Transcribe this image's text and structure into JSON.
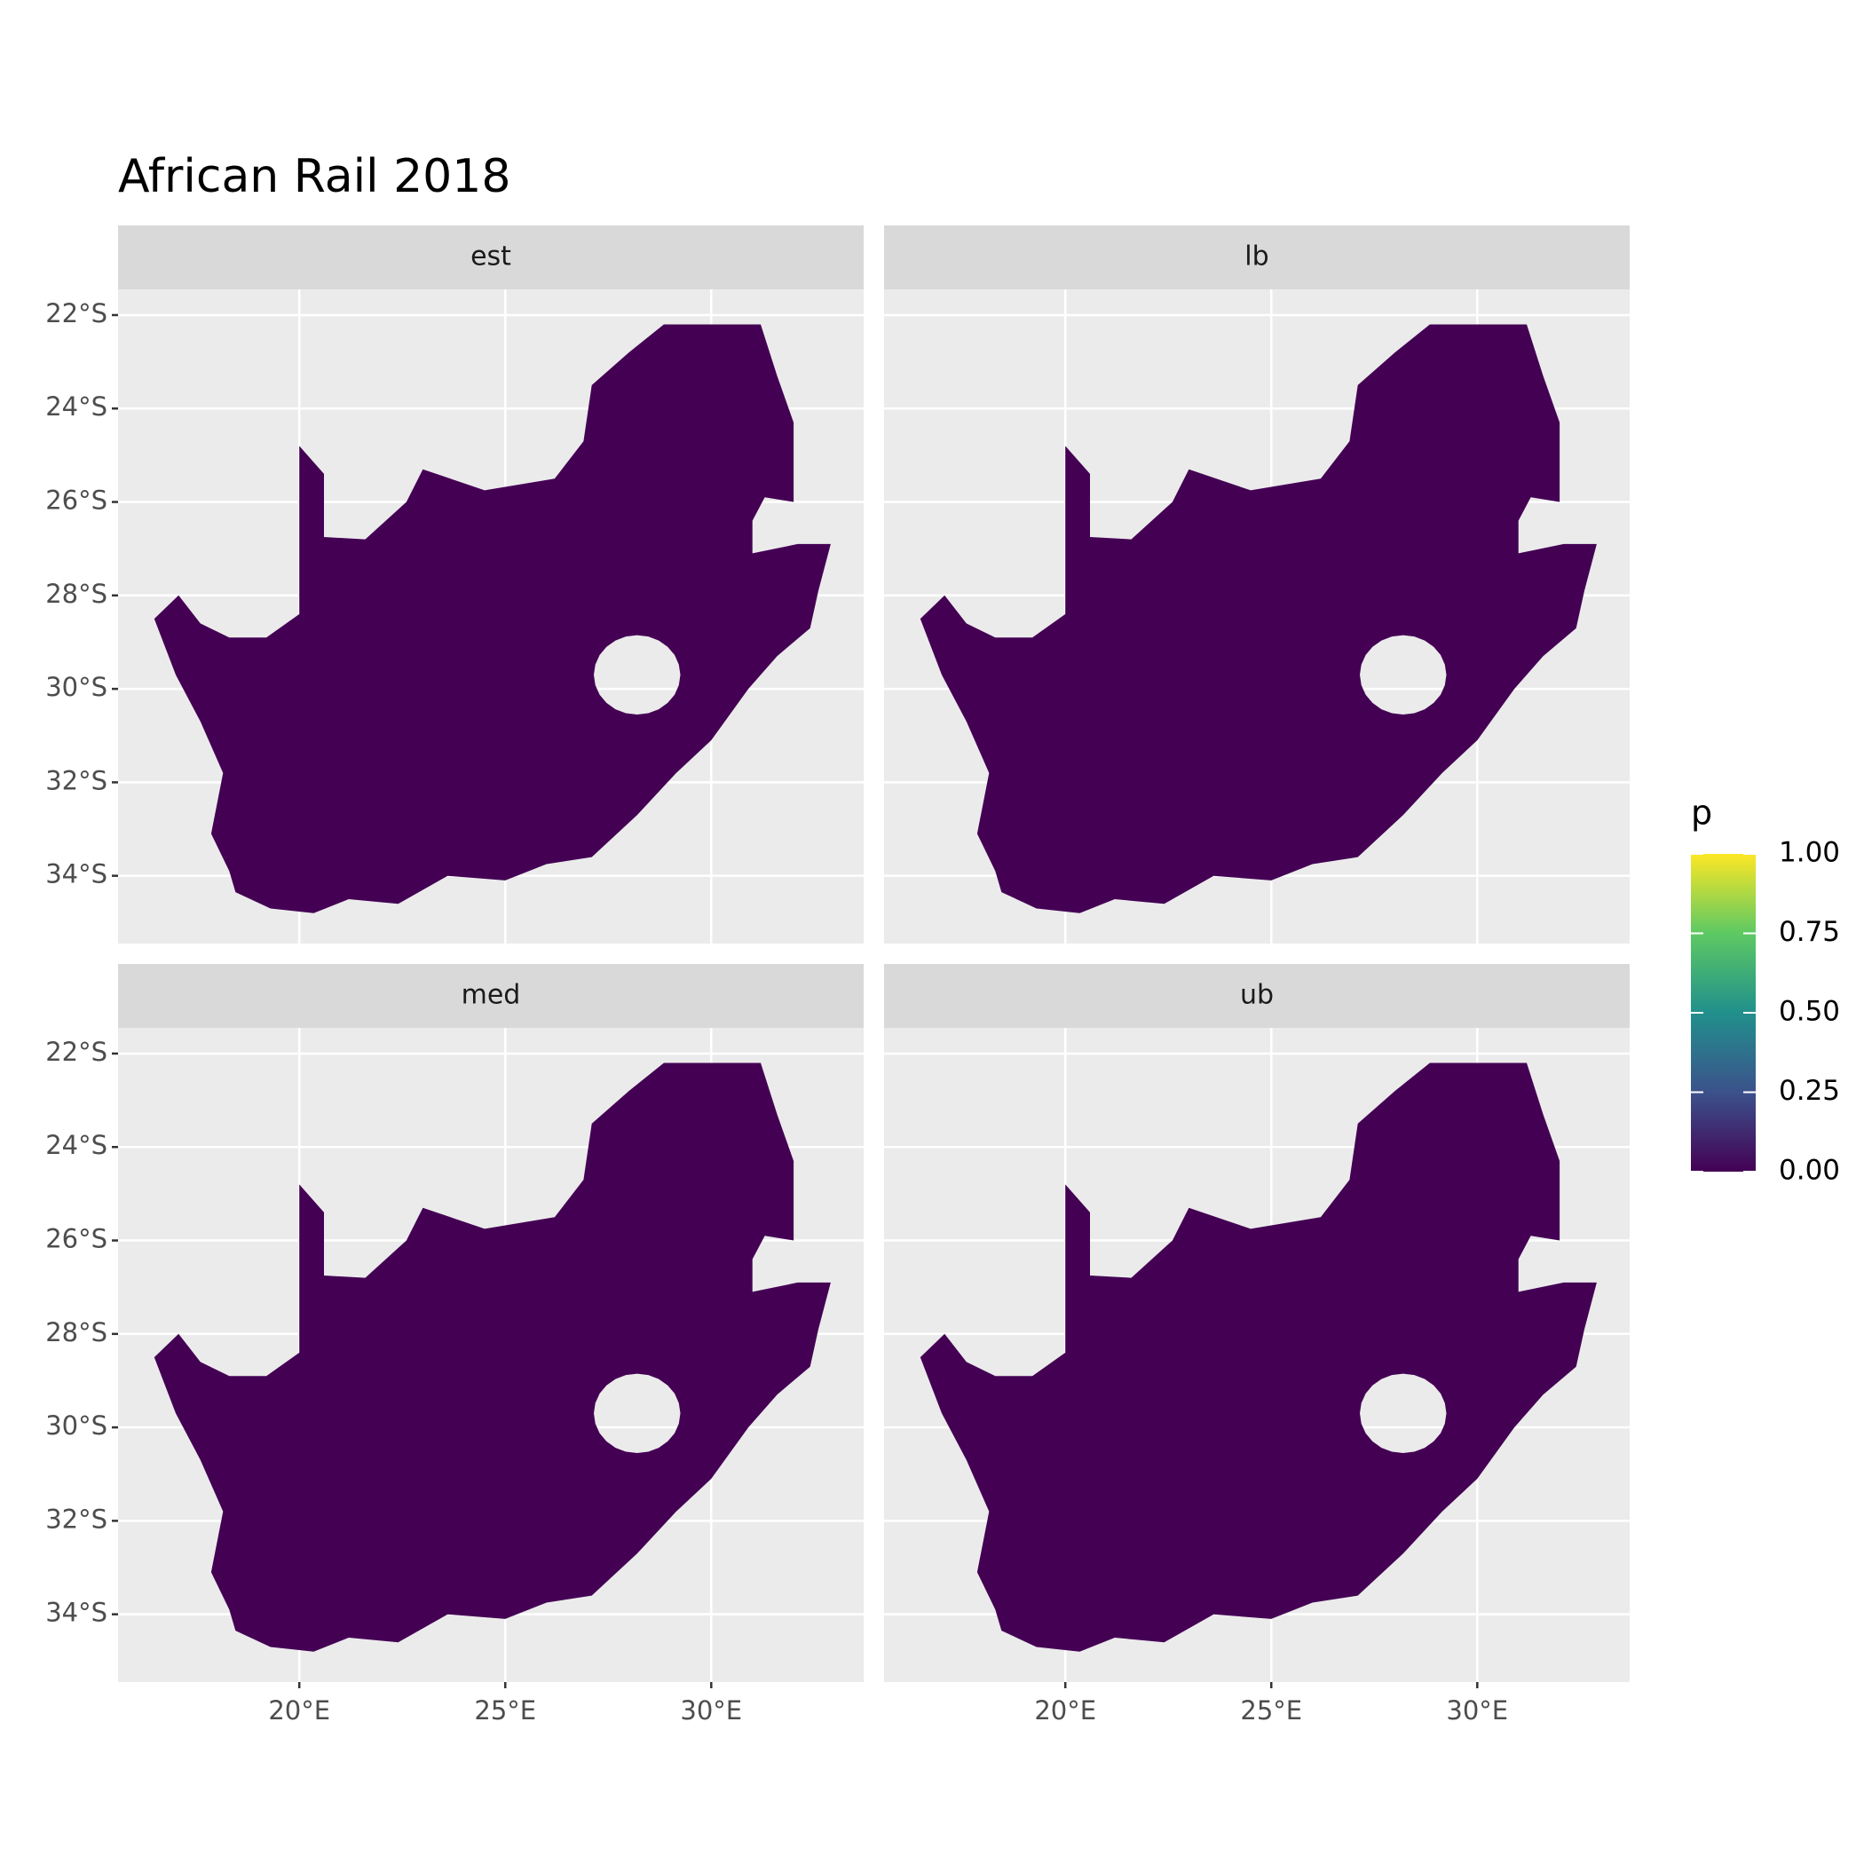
{
  "chart_data": {
    "type": "raster",
    "title": "African Rail 2018",
    "facets": [
      "est",
      "lb",
      "med",
      "ub"
    ],
    "xlim": [
      15.6,
      33.7
    ],
    "ylim": [
      -35.45,
      -21.45
    ],
    "xticks": [
      {
        "value": 20,
        "label": "20°E"
      },
      {
        "value": 25,
        "label": "25°E"
      },
      {
        "value": 30,
        "label": "30°E"
      }
    ],
    "yticks": [
      {
        "value": -22,
        "label": "22°S"
      },
      {
        "value": -24,
        "label": "24°S"
      },
      {
        "value": -26,
        "label": "26°S"
      },
      {
        "value": -28,
        "label": "28°S"
      },
      {
        "value": -30,
        "label": "30°S"
      },
      {
        "value": -32,
        "label": "32°S"
      },
      {
        "value": -34,
        "label": "34°S"
      }
    ],
    "grid": true,
    "legend": {
      "title": "p",
      "lim": [
        0,
        1
      ],
      "ticks": [
        {
          "value": 0,
          "label": "0.00"
        },
        {
          "value": 0.25,
          "label": "0.25"
        },
        {
          "value": 0.5,
          "label": "0.50"
        },
        {
          "value": 0.75,
          "label": "0.75"
        },
        {
          "value": 1,
          "label": "1.00"
        }
      ],
      "colors": [
        "#440154",
        "#3b528b",
        "#21908c",
        "#5dc963",
        "#fde725"
      ]
    }
  }
}
